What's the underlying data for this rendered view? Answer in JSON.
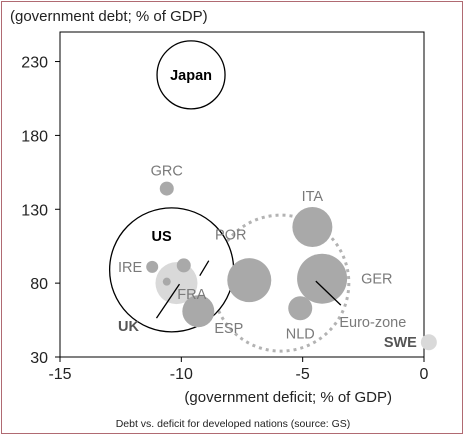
{
  "caption": "Debt vs. deficit for developed nations (source: GS)",
  "chart_data": {
    "type": "scatter",
    "xlabel": "(government deficit; % of GDP)",
    "ylabel": "(government debt; % of GDP)",
    "xlim": [
      -15,
      0
    ],
    "ylim": [
      30,
      250
    ],
    "xticks": [
      -15,
      -10,
      -5,
      0
    ],
    "yticks": [
      30,
      80,
      130,
      180,
      230
    ],
    "grid": false,
    "points": [
      {
        "label": "Japan",
        "x": -9.6,
        "y": 221,
        "r": 34,
        "fill": "#ffffff",
        "stroke": "#000000",
        "label_style": "black",
        "label_pos": "center"
      },
      {
        "label": "GRC",
        "x": -10.6,
        "y": 144,
        "r": 7,
        "fill": "#a9a9a9",
        "stroke": "none",
        "label_style": "normal",
        "label_pos": "above"
      },
      {
        "label": "ITA",
        "x": -4.6,
        "y": 118,
        "r": 20,
        "fill": "#a9a9a9",
        "stroke": "none",
        "label_style": "normal",
        "label_pos": "above"
      },
      {
        "label": "US",
        "x": -10.4,
        "y": 89,
        "r": 62,
        "fill": "#ffffff",
        "stroke": "#000000",
        "label_style": "black",
        "label_pos": "inside-top"
      },
      {
        "label": "IRE",
        "x": -11.2,
        "y": 91,
        "r": 6,
        "fill": "#a9a9a9",
        "stroke": "none",
        "label_style": "normal",
        "label_pos": "left"
      },
      {
        "label": "",
        "x": -9.9,
        "y": 92,
        "r": 7,
        "fill": "#a9a9a9",
        "stroke": "none",
        "label_style": "normal",
        "label_pos": "none"
      },
      {
        "label": "UK",
        "x": -10.2,
        "y": 80,
        "r": 21,
        "fill": "#d9d9d9",
        "stroke": "none",
        "label_style": "bold",
        "label_pos": "leader-bottom-left"
      },
      {
        "label": "POR",
        "x": -10.6,
        "y": 81,
        "r": 4,
        "fill": "#a9a9a9",
        "stroke": "none",
        "label_style": "normal",
        "label_pos": "leader-top-right"
      },
      {
        "label": "ESP",
        "x": -9.3,
        "y": 61,
        "r": 16,
        "fill": "#a9a9a9",
        "stroke": "none",
        "label_style": "normal",
        "label_pos": "below-right"
      },
      {
        "label": "FRA",
        "x": -7.2,
        "y": 82,
        "r": 22,
        "fill": "#a9a9a9",
        "stroke": "none",
        "label_style": "normal",
        "label_pos": "left-below"
      },
      {
        "label": "NLD",
        "x": -5.1,
        "y": 63,
        "r": 12,
        "fill": "#a9a9a9",
        "stroke": "none",
        "label_style": "normal",
        "label_pos": "below"
      },
      {
        "label": "GER",
        "x": -4.2,
        "y": 83,
        "r": 25,
        "fill": "#a9a9a9",
        "stroke": "none",
        "label_style": "normal",
        "label_pos": "right"
      },
      {
        "label": "Euro-zone",
        "x": -5.9,
        "y": 80,
        "r": 68,
        "fill": "none",
        "stroke": "#b3b3b3",
        "dashed": true,
        "label_style": "normal",
        "label_pos": "leader-bottom-right"
      },
      {
        "label": "SWE",
        "x": 0.2,
        "y": 40,
        "r": 8,
        "fill": "#d9d9d9",
        "stroke": "none",
        "label_style": "bold",
        "label_pos": "left"
      }
    ]
  }
}
